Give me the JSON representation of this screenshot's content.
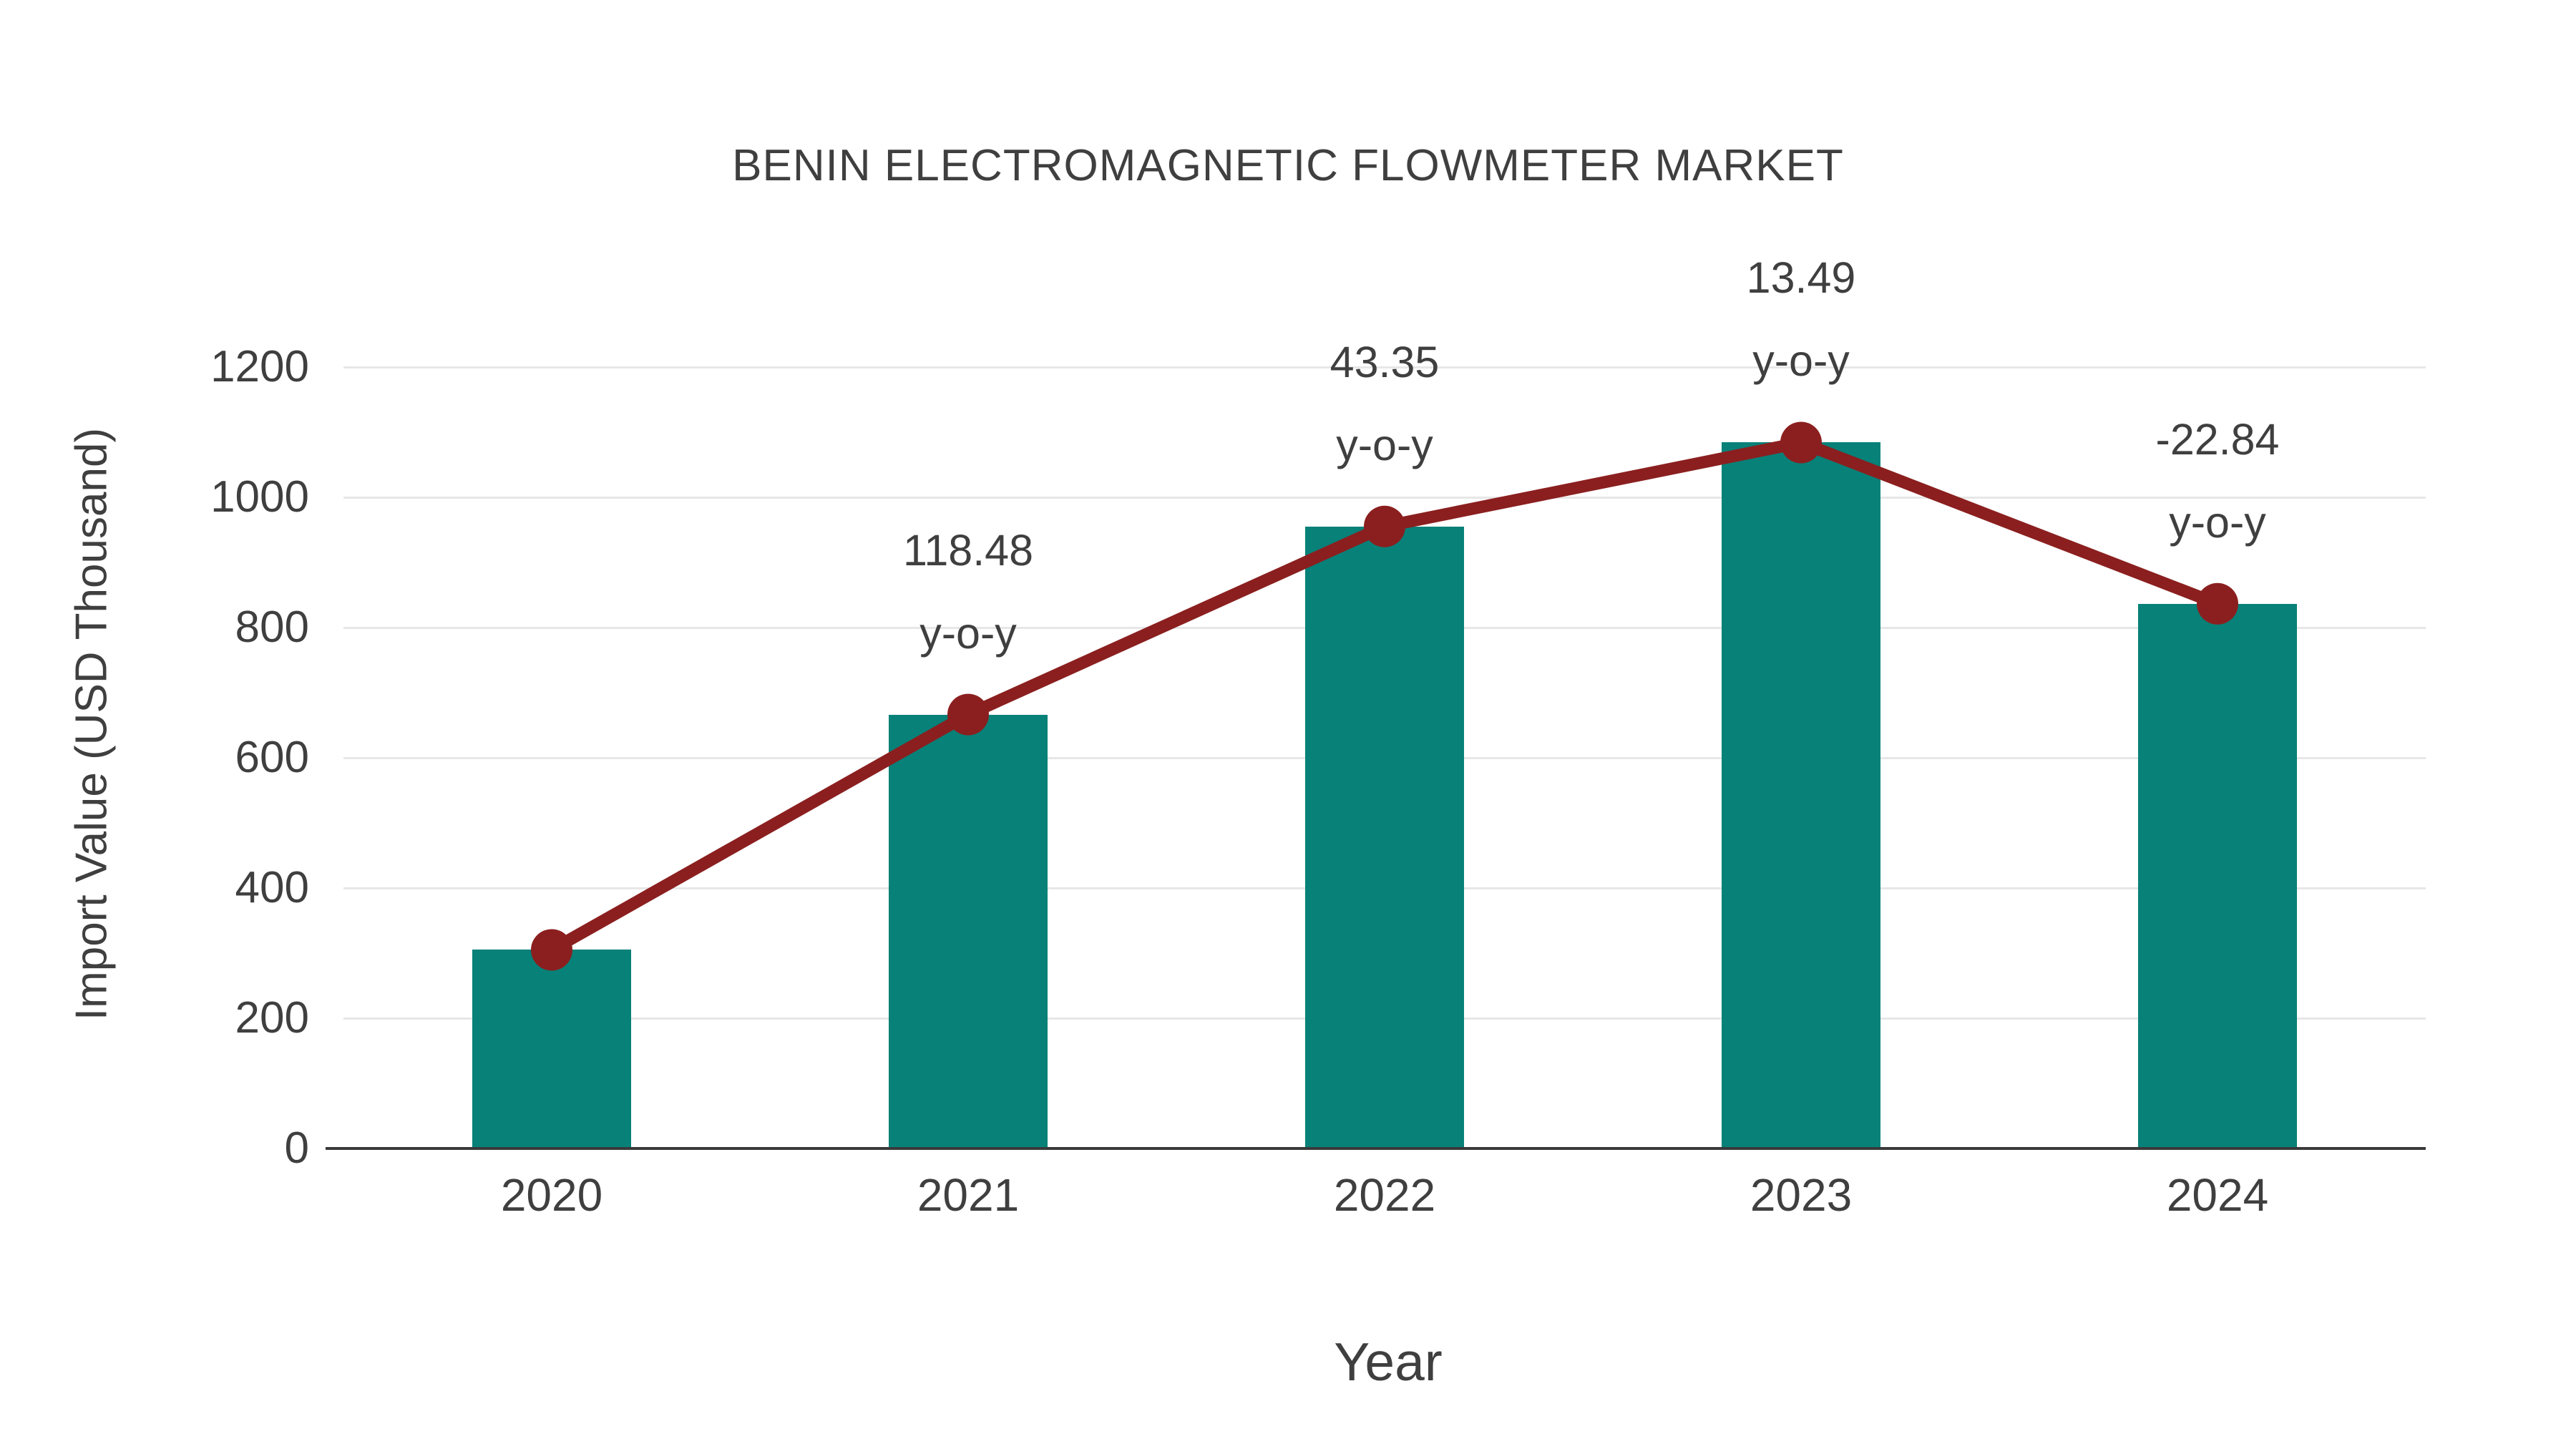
{
  "chart_data": {
    "type": "bar",
    "title": "BENIN ELECTROMAGNETIC FLOWMETER MARKET",
    "xlabel": "Year",
    "ylabel": "Import Value (USD Thousand)",
    "categories": [
      "2020",
      "2021",
      "2022",
      "2023",
      "2024"
    ],
    "series": [
      {
        "name": "Import Value (USD Thousand)",
        "type": "bar",
        "values": [
          305,
          666.4,
          955.2,
          1084.1,
          836.5
        ]
      },
      {
        "name": "y-o-y growth (%)",
        "type": "line",
        "values": [
          null,
          118.48,
          43.35,
          13.49,
          -22.84
        ]
      }
    ],
    "annotations": [
      {
        "category": "2021",
        "line1": "118.48",
        "line2": "y-o-y"
      },
      {
        "category": "2022",
        "line1": "43.35",
        "line2": "y-o-y"
      },
      {
        "category": "2023",
        "line1": "13.49",
        "line2": "y-o-y"
      },
      {
        "category": "2024",
        "line1": "-22.84",
        "line2": "y-o-y"
      }
    ],
    "y_ticks": [
      0,
      200,
      400,
      600,
      800,
      1000,
      1200
    ],
    "ylim": [
      0,
      1300
    ],
    "grid": "horizontal",
    "legend_position": "none",
    "colors": {
      "bar": "#088179",
      "line": "#8b1f1f",
      "grid": "#e7e7e7",
      "axis": "#3a3a3a",
      "text": "#3f3f3f"
    }
  }
}
